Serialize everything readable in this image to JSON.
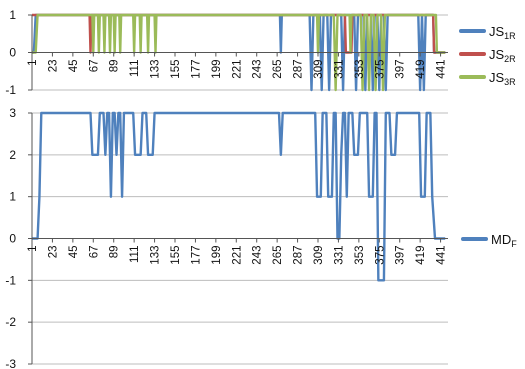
{
  "chart_data": [
    {
      "type": "line",
      "ylim": [
        -1,
        1
      ],
      "yticks": [
        -1,
        0,
        1
      ],
      "x_range": [
        1,
        449
      ],
      "xticks": [
        1,
        23,
        45,
        67,
        89,
        111,
        133,
        155,
        177,
        199,
        221,
        243,
        265,
        287,
        309,
        331,
        353,
        375,
        397,
        419,
        441
      ],
      "grid": true,
      "legend_position": "right",
      "series": [
        {
          "name": "JS1R",
          "name_main": "JS",
          "name_sub": "1R",
          "color": "#4f81bd",
          "points": [
            [
              1,
              0
            ],
            [
              3,
              0
            ],
            [
              5,
              1
            ],
            [
              268,
              1
            ],
            [
              269,
              0
            ],
            [
              270,
              1
            ],
            [
              300,
              1
            ],
            [
              302,
              -1
            ],
            [
              304,
              1
            ],
            [
              311,
              1
            ],
            [
              313,
              -1
            ],
            [
              315,
              1
            ],
            [
              319,
              1
            ],
            [
              321,
              -1
            ],
            [
              323,
              1
            ],
            [
              334,
              1
            ],
            [
              336,
              -1
            ],
            [
              338,
              1
            ],
            [
              348,
              1
            ],
            [
              350,
              -1
            ],
            [
              352,
              1
            ],
            [
              358,
              1
            ],
            [
              360,
              -1
            ],
            [
              362,
              1
            ],
            [
              366,
              1
            ],
            [
              368,
              -1
            ],
            [
              370,
              1
            ],
            [
              373,
              1
            ],
            [
              375,
              -1
            ],
            [
              377,
              1
            ],
            [
              380,
              1
            ],
            [
              382,
              -1
            ],
            [
              384,
              1
            ],
            [
              417,
              1
            ],
            [
              419,
              -1
            ],
            [
              421,
              1
            ],
            [
              423,
              -1
            ],
            [
              425,
              1
            ],
            [
              433,
              1
            ],
            [
              434,
              0
            ],
            [
              446,
              0
            ]
          ]
        },
        {
          "name": "JS2R",
          "name_main": "JS",
          "name_sub": "2R",
          "color": "#c0504d",
          "points": [
            [
              1,
              1
            ],
            [
              63,
              1
            ],
            [
              64,
              0
            ],
            [
              65,
              1
            ],
            [
              338,
              1
            ],
            [
              339,
              0
            ],
            [
              345,
              0
            ],
            [
              346,
              1
            ],
            [
              433,
              1
            ],
            [
              434,
              0
            ],
            [
              446,
              0
            ]
          ]
        },
        {
          "name": "JS3R",
          "name_main": "JS",
          "name_sub": "3R",
          "color": "#9bbb59",
          "points": [
            [
              1,
              0
            ],
            [
              5,
              0
            ],
            [
              7,
              1
            ],
            [
              66,
              1
            ],
            [
              67,
              0
            ],
            [
              68,
              1
            ],
            [
              72,
              1
            ],
            [
              73,
              0
            ],
            [
              74,
              1
            ],
            [
              78,
              1
            ],
            [
              79,
              0
            ],
            [
              80,
              1
            ],
            [
              84,
              1
            ],
            [
              85,
              0
            ],
            [
              86,
              1
            ],
            [
              89,
              1
            ],
            [
              90,
              0
            ],
            [
              91,
              1
            ],
            [
              95,
              1
            ],
            [
              96,
              0
            ],
            [
              97,
              1
            ],
            [
              110,
              1
            ],
            [
              111,
              0
            ],
            [
              112,
              1
            ],
            [
              117,
              1
            ],
            [
              118,
              0
            ],
            [
              119,
              1
            ],
            [
              125,
              1
            ],
            [
              126,
              0
            ],
            [
              127,
              1
            ],
            [
              133,
              1
            ],
            [
              134,
              0
            ],
            [
              135,
              1
            ],
            [
              308,
              1
            ],
            [
              309,
              0
            ],
            [
              310,
              1
            ],
            [
              326,
              1
            ],
            [
              328,
              -1
            ],
            [
              330,
              1
            ],
            [
              343,
              1
            ],
            [
              344,
              0
            ],
            [
              345,
              1
            ],
            [
              355,
              1
            ],
            [
              357,
              -1
            ],
            [
              359,
              1
            ],
            [
              362,
              1
            ],
            [
              364,
              -1
            ],
            [
              366,
              1
            ],
            [
              369,
              1
            ],
            [
              371,
              -1
            ],
            [
              373,
              1
            ],
            [
              377,
              1
            ],
            [
              379,
              -1
            ],
            [
              381,
              1
            ],
            [
              436,
              1
            ],
            [
              437,
              0
            ],
            [
              446,
              0
            ]
          ]
        }
      ]
    },
    {
      "type": "line",
      "ylim": [
        -3,
        3
      ],
      "yticks": [
        -3,
        -2,
        -1,
        0,
        1,
        2,
        3
      ],
      "x_range": [
        1,
        449
      ],
      "xticks": [
        1,
        23,
        45,
        67,
        89,
        111,
        133,
        155,
        177,
        199,
        221,
        243,
        265,
        287,
        309,
        331,
        353,
        375,
        397,
        419,
        441
      ],
      "grid": true,
      "legend_position": "right",
      "series": [
        {
          "name": "MDF",
          "name_main": "MD",
          "name_sub": "F",
          "color": "#4f81bd",
          "points": [
            [
              1,
              0
            ],
            [
              7,
              0
            ],
            [
              9,
              1
            ],
            [
              11,
              3
            ],
            [
              64,
              3
            ],
            [
              66,
              2
            ],
            [
              72,
              2
            ],
            [
              74,
              3
            ],
            [
              78,
              3
            ],
            [
              80,
              2
            ],
            [
              82,
              3
            ],
            [
              84,
              3
            ],
            [
              86,
              1
            ],
            [
              88,
              3
            ],
            [
              90,
              3
            ],
            [
              92,
              2
            ],
            [
              94,
              3
            ],
            [
              96,
              3
            ],
            [
              98,
              1
            ],
            [
              100,
              3
            ],
            [
              110,
              3
            ],
            [
              112,
              2
            ],
            [
              118,
              2
            ],
            [
              120,
              3
            ],
            [
              124,
              3
            ],
            [
              126,
              2
            ],
            [
              131,
              2
            ],
            [
              133,
              3
            ],
            [
              267,
              3
            ],
            [
              269,
              2
            ],
            [
              271,
              3
            ],
            [
              306,
              3
            ],
            [
              308,
              1
            ],
            [
              312,
              1
            ],
            [
              314,
              3
            ],
            [
              318,
              3
            ],
            [
              320,
              1
            ],
            [
              324,
              1
            ],
            [
              326,
              3
            ],
            [
              328,
              3
            ],
            [
              330,
              0
            ],
            [
              332,
              0
            ],
            [
              334,
              2
            ],
            [
              336,
              3
            ],
            [
              338,
              3
            ],
            [
              340,
              1
            ],
            [
              342,
              3
            ],
            [
              346,
              3
            ],
            [
              348,
              2
            ],
            [
              352,
              2
            ],
            [
              354,
              3
            ],
            [
              362,
              3
            ],
            [
              364,
              1
            ],
            [
              368,
              1
            ],
            [
              370,
              3
            ],
            [
              372,
              3
            ],
            [
              374,
              -1
            ],
            [
              380,
              -1
            ],
            [
              382,
              3
            ],
            [
              386,
              3
            ],
            [
              388,
              2
            ],
            [
              392,
              2
            ],
            [
              394,
              3
            ],
            [
              418,
              3
            ],
            [
              420,
              1
            ],
            [
              424,
              1
            ],
            [
              426,
              3
            ],
            [
              430,
              3
            ],
            [
              432,
              1
            ],
            [
              435,
              0
            ],
            [
              446,
              0
            ]
          ]
        }
      ]
    }
  ]
}
